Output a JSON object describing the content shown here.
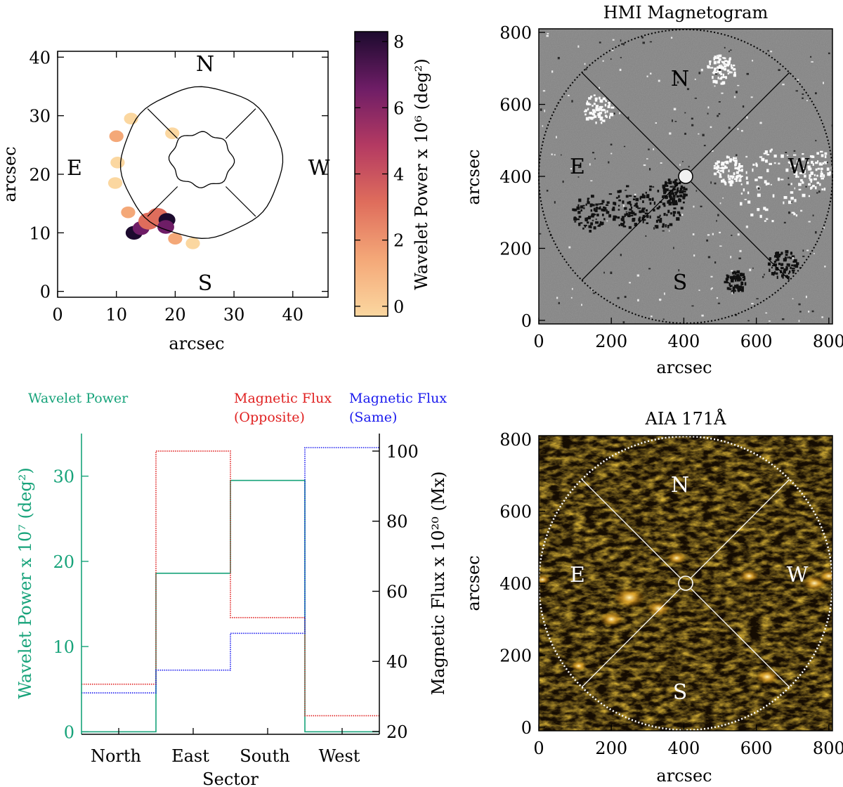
{
  "chart_data": [
    {
      "id": "wavelet-map",
      "type": "heatmap",
      "title": "",
      "xlabel": "arcsec",
      "ylabel": "arcsec",
      "xlim": [
        0,
        46
      ],
      "ylim": [
        -1,
        41
      ],
      "xticks": [
        "0",
        "10",
        "20",
        "30",
        "40"
      ],
      "yticks": [
        "0",
        "10",
        "20",
        "30",
        "40"
      ],
      "xtick_values": [
        0,
        10,
        20,
        30,
        40
      ],
      "ytick_values": [
        0,
        10,
        20,
        30,
        40
      ],
      "sector_labels": [
        "N",
        "E",
        "W",
        "S"
      ],
      "colorbar": {
        "label": "Wavelet Power x 10⁶ (deg²)",
        "range": [
          -0.3,
          8.3
        ],
        "ticks": [
          "0",
          "2",
          "4",
          "6",
          "8"
        ],
        "tick_values": [
          0,
          2,
          4,
          6,
          8
        ]
      },
      "annulus": {
        "center": [
          24.5,
          22
        ],
        "outer_radius": 13.5,
        "inner_radius": 5
      },
      "power_blobs": [
        {
          "x": 13.0,
          "y": 10.0,
          "value": 8.2
        },
        {
          "x": 14.2,
          "y": 10.8,
          "value": 6.5
        },
        {
          "x": 15.5,
          "y": 12.0,
          "value": 4.0
        },
        {
          "x": 17.0,
          "y": 12.8,
          "value": 3.0
        },
        {
          "x": 18.6,
          "y": 12.2,
          "value": 8.0
        },
        {
          "x": 18.4,
          "y": 11.0,
          "value": 6.0
        },
        {
          "x": 12.0,
          "y": 13.5,
          "value": 1.2
        },
        {
          "x": 20.0,
          "y": 9.0,
          "value": 0.6
        },
        {
          "x": 23.0,
          "y": 8.2,
          "value": 0.3
        },
        {
          "x": 10.2,
          "y": 22.0,
          "value": 0.5
        },
        {
          "x": 10.0,
          "y": 26.5,
          "value": 0.6
        },
        {
          "x": 12.5,
          "y": 29.5,
          "value": 0.5
        },
        {
          "x": 19.5,
          "y": 27.0,
          "value": 0.4
        },
        {
          "x": 9.8,
          "y": 18.5,
          "value": 0.3
        }
      ]
    },
    {
      "id": "hmi-magnetogram",
      "type": "heatmap",
      "title": "HMI Magnetogram",
      "xlabel": "arcsec",
      "ylabel": "arcsec",
      "xlim": [
        0,
        810
      ],
      "ylim": [
        -10,
        810
      ],
      "xticks": [
        "0",
        "200",
        "400",
        "600",
        "800"
      ],
      "yticks": [
        "0",
        "200",
        "400",
        "600",
        "800"
      ],
      "xtick_values": [
        0,
        200,
        400,
        600,
        800
      ],
      "ytick_values": [
        0,
        200,
        400,
        600,
        800
      ],
      "sector_labels": [
        "N",
        "E",
        "W",
        "S"
      ],
      "circle": {
        "center": [
          405,
          400
        ],
        "radius": 405
      }
    },
    {
      "id": "flux-histogram",
      "type": "line",
      "title": "",
      "xlabel": "Sector",
      "ylabel": "Wavelet Power x 10⁷ (deg²)",
      "y2label": "Magnetic Flux x 10²⁰ (Mx)",
      "categories": [
        "North",
        "East",
        "South",
        "West"
      ],
      "ylim": [
        -0.3,
        35
      ],
      "y2lim": [
        19.2,
        105
      ],
      "yticks": [
        "0",
        "10",
        "20",
        "30"
      ],
      "ytick_values": [
        0,
        10,
        20,
        30
      ],
      "y2ticks": [
        "20",
        "40",
        "60",
        "80",
        "100"
      ],
      "y2tick_values": [
        20,
        40,
        60,
        80,
        100
      ],
      "legend": [
        "Wavelet Power",
        "Magnetic Flux",
        "(Opposite)",
        "Magnetic Flux",
        "(Same)"
      ],
      "series": [
        {
          "name": "Wavelet Power",
          "axis": "left",
          "color": "#17a37a",
          "values": [
            0,
            18.6,
            29.5,
            0
          ]
        },
        {
          "name": "Magnetic Flux (Opposite)",
          "axis": "right",
          "color": "#e02020",
          "values": [
            33.5,
            100,
            52.5,
            24.5
          ]
        },
        {
          "name": "Magnetic Flux (Same)",
          "axis": "right",
          "color": "#1a1aee",
          "values": [
            31,
            37.5,
            48,
            101
          ]
        }
      ]
    },
    {
      "id": "aia-171",
      "type": "heatmap",
      "title": "AIA 171Å",
      "xlabel": "arcsec",
      "ylabel": "arcsec",
      "xlim": [
        0,
        810
      ],
      "ylim": [
        -10,
        810
      ],
      "xticks": [
        "0",
        "200",
        "400",
        "600",
        "800"
      ],
      "yticks": [
        "0",
        "200",
        "400",
        "600",
        "800"
      ],
      "xtick_values": [
        0,
        200,
        400,
        600,
        800
      ],
      "ytick_values": [
        0,
        200,
        400,
        600,
        800
      ],
      "sector_labels": [
        "N",
        "E",
        "W",
        "S"
      ],
      "circle": {
        "center": [
          405,
          400
        ],
        "radius": 405
      }
    }
  ]
}
